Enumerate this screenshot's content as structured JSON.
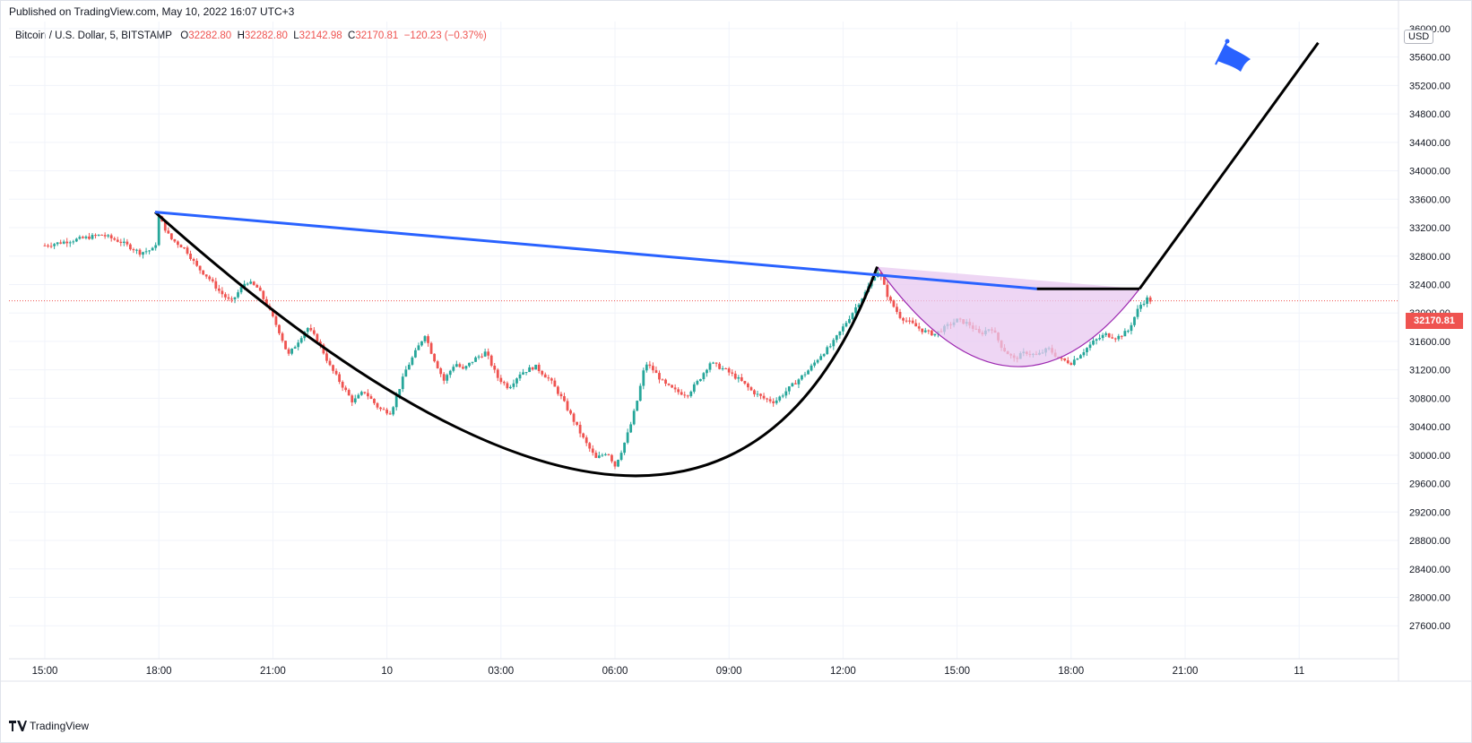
{
  "published": "Published on TradingView.com, May 10, 2022 16:07 UTC+3",
  "header": {
    "symbol": "Bitcoin / U.S. Dollar, 5, BITSTAMP",
    "o_label": "O",
    "o_value": "32282.80",
    "h_label": "H",
    "h_value": "32282.80",
    "l_label": "L",
    "l_value": "32142.98",
    "c_label": "C",
    "c_value": "32170.81",
    "change": "−120.23 (−0.37%)"
  },
  "currency": "USD",
  "last_price_label": "32170.81",
  "footer": {
    "brand": "TradingView"
  },
  "colors": {
    "up": "#26a69a",
    "down": "#ef5350",
    "trendline": "#2962ff",
    "cup": "#000000",
    "handle_fill": "#e8c8f0",
    "handle_stroke": "#9c27b0",
    "flag": "#2962ff"
  },
  "chart_data": {
    "type": "candlestick",
    "title": "",
    "xlabel": "",
    "ylabel": "",
    "ylim": [
      27300,
      36100
    ],
    "x_ticks": [
      "15:00",
      "18:00",
      "21:00",
      "10",
      "03:00",
      "06:00",
      "09:00",
      "12:00",
      "15:00",
      "18:00",
      "21:00",
      "11"
    ],
    "y_ticks": [
      27600,
      28000,
      28400,
      28800,
      29200,
      29600,
      30000,
      30400,
      30800,
      31200,
      31600,
      32000,
      32400,
      32800,
      33200,
      33600,
      34000,
      34400,
      34800,
      35200,
      35600,
      36000
    ],
    "last_price": 32170.81,
    "price_path_hours": [
      [
        0,
        32950
      ],
      [
        1.0,
        33050
      ],
      [
        1.5,
        33100
      ],
      [
        2.0,
        33000
      ],
      [
        2.5,
        32850
      ],
      [
        2.9,
        32900
      ],
      [
        3.0,
        33350
      ],
      [
        3.3,
        33050
      ],
      [
        3.7,
        32900
      ],
      [
        4.0,
        32650
      ],
      [
        4.3,
        32500
      ],
      [
        4.6,
        32300
      ],
      [
        4.9,
        32150
      ],
      [
        5.3,
        32450
      ],
      [
        5.6,
        32350
      ],
      [
        5.9,
        32050
      ],
      [
        6.2,
        31700
      ],
      [
        6.4,
        31400
      ],
      [
        6.6,
        31550
      ],
      [
        6.9,
        31800
      ],
      [
        7.2,
        31600
      ],
      [
        7.5,
        31250
      ],
      [
        7.8,
        31000
      ],
      [
        8.1,
        30750
      ],
      [
        8.4,
        30900
      ],
      [
        8.8,
        30650
      ],
      [
        9.1,
        30600
      ],
      [
        9.3,
        30900
      ],
      [
        9.5,
        31200
      ],
      [
        9.8,
        31500
      ],
      [
        10.0,
        31700
      ],
      [
        10.2,
        31400
      ],
      [
        10.5,
        31050
      ],
      [
        10.8,
        31300
      ],
      [
        11.0,
        31200
      ],
      [
        11.3,
        31350
      ],
      [
        11.6,
        31450
      ],
      [
        11.9,
        31100
      ],
      [
        12.2,
        30950
      ],
      [
        12.5,
        31150
      ],
      [
        12.9,
        31250
      ],
      [
        13.3,
        31050
      ],
      [
        13.6,
        30800
      ],
      [
        13.9,
        30500
      ],
      [
        14.2,
        30200
      ],
      [
        14.5,
        29950
      ],
      [
        14.8,
        30050
      ],
      [
        15.0,
        29850
      ],
      [
        15.2,
        30100
      ],
      [
        15.4,
        30400
      ],
      [
        15.6,
        30800
      ],
      [
        15.8,
        31300
      ],
      [
        16.0,
        31200
      ],
      [
        16.3,
        31000
      ],
      [
        16.6,
        30900
      ],
      [
        16.9,
        30850
      ],
      [
        17.2,
        31050
      ],
      [
        17.5,
        31300
      ],
      [
        17.9,
        31200
      ],
      [
        18.3,
        31050
      ],
      [
        18.6,
        30900
      ],
      [
        18.9,
        30800
      ],
      [
        19.2,
        30750
      ],
      [
        19.5,
        30900
      ],
      [
        19.8,
        31050
      ],
      [
        20.1,
        31200
      ],
      [
        20.4,
        31400
      ],
      [
        20.7,
        31550
      ],
      [
        21.0,
        31800
      ],
      [
        21.3,
        32050
      ],
      [
        21.6,
        32300
      ],
      [
        21.8,
        32500
      ],
      [
        21.9,
        32600
      ],
      [
        22.0,
        32500
      ],
      [
        22.2,
        32200
      ],
      [
        22.5,
        31950
      ],
      [
        22.8,
        31850
      ],
      [
        23.1,
        31750
      ],
      [
        23.4,
        31700
      ],
      [
        23.7,
        31800
      ],
      [
        24.0,
        31900
      ],
      [
        24.3,
        31850
      ],
      [
        24.6,
        31700
      ],
      [
        24.9,
        31800
      ],
      [
        25.2,
        31500
      ],
      [
        25.5,
        31350
      ],
      [
        25.8,
        31450
      ],
      [
        26.1,
        31400
      ],
      [
        26.4,
        31500
      ],
      [
        26.7,
        31350
      ],
      [
        27.0,
        31300
      ],
      [
        27.3,
        31450
      ],
      [
        27.6,
        31600
      ],
      [
        27.9,
        31700
      ],
      [
        28.2,
        31650
      ],
      [
        28.5,
        31750
      ],
      [
        28.8,
        32100
      ],
      [
        29.0,
        32200
      ],
      [
        29.1,
        32170.81
      ]
    ],
    "drawings": {
      "trendline": {
        "start": [
          2.9,
          33420
        ],
        "end": [
          26.1,
          32340
        ]
      },
      "cup": {
        "start": [
          2.9,
          33420
        ],
        "bottom": [
          15.0,
          29720
        ],
        "end": [
          21.9,
          32650
        ]
      },
      "handle": {
        "start": [
          21.9,
          32650
        ],
        "bottom": [
          25.4,
          31250
        ],
        "end": [
          28.8,
          32340
        ]
      },
      "breakout": {
        "start": [
          28.8,
          32340
        ],
        "end": [
          33.5,
          35800
        ]
      }
    }
  }
}
